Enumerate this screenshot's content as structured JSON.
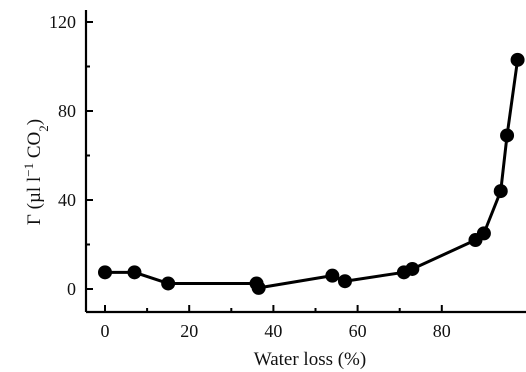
{
  "chart_data": {
    "type": "line",
    "title": "",
    "xlabel": "Water loss (%)",
    "ylabel": {
      "main": "Γ (µl l",
      "sup": "−1",
      "mid": " CO",
      "sub": "2",
      "end": ")"
    },
    "xlim": [
      0,
      100
    ],
    "ylim": [
      0,
      120
    ],
    "xticks": [
      0,
      20,
      40,
      60,
      80
    ],
    "yticks": [
      0,
      40,
      80,
      120
    ],
    "grid": false,
    "series": [
      {
        "name": "",
        "x": [
          0,
          7,
          15,
          36,
          36.5,
          54,
          57,
          71,
          73,
          88,
          90,
          94,
          95.5,
          98
        ],
        "y": [
          7.5,
          7.5,
          2.5,
          2.5,
          0.5,
          6,
          3.5,
          7.5,
          9,
          22,
          25,
          44,
          69,
          103
        ]
      }
    ]
  }
}
